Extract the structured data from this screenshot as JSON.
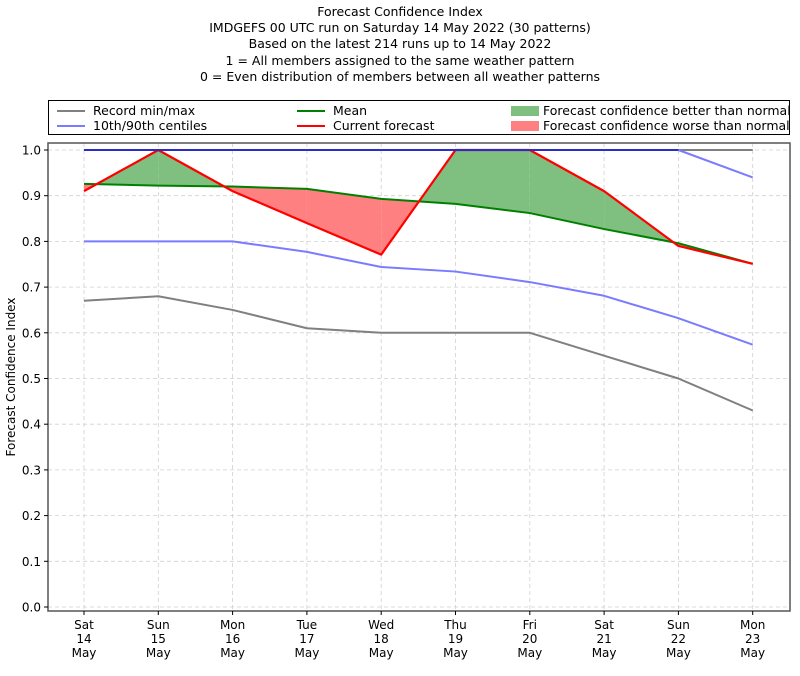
{
  "chart_data": {
    "type": "line",
    "title": "Forecast Confidence Index",
    "subtitle_lines": [
      "IMDGEFS 00 UTC run on Saturday 14 May 2022 (30 patterns)",
      "Based on the latest 214 runs up to 14 May 2022",
      "1 = All members assigned to the same weather pattern",
      "0 = Even distribution of members between all weather patterns"
    ],
    "xlabel": "",
    "ylabel": "Forecast Confidence Index",
    "ylim": [
      0.0,
      1.0
    ],
    "yticks": [
      "0.0",
      "0.1",
      "0.2",
      "0.3",
      "0.4",
      "0.5",
      "0.6",
      "0.7",
      "0.8",
      "0.9",
      "1.0"
    ],
    "grid": true,
    "categories": [
      [
        "Sat",
        "14",
        "May"
      ],
      [
        "Sun",
        "15",
        "May"
      ],
      [
        "Mon",
        "16",
        "May"
      ],
      [
        "Tue",
        "17",
        "May"
      ],
      [
        "Wed",
        "18",
        "May"
      ],
      [
        "Thu",
        "19",
        "May"
      ],
      [
        "Fri",
        "20",
        "May"
      ],
      [
        "Sat",
        "21",
        "May"
      ],
      [
        "Sun",
        "22",
        "May"
      ],
      [
        "Mon",
        "23",
        "May"
      ]
    ],
    "series": [
      {
        "key": "record_max",
        "name": "Record min/max",
        "color": "#808080",
        "values": [
          1.0,
          1.0,
          1.0,
          1.0,
          1.0,
          1.0,
          1.0,
          1.0,
          1.0,
          1.0
        ]
      },
      {
        "key": "record_min",
        "name": "Record min/max",
        "color": "#808080",
        "values": [
          0.67,
          0.68,
          0.65,
          0.61,
          0.6,
          0.6,
          0.6,
          0.55,
          0.5,
          0.43
        ]
      },
      {
        "key": "p90",
        "name": "10th/90th centiles",
        "color": "#7b7bff",
        "values": [
          1.0,
          1.0,
          1.0,
          1.0,
          1.0,
          1.0,
          1.0,
          1.0,
          1.0,
          0.94
        ]
      },
      {
        "key": "p10",
        "name": "10th/90th centiles",
        "color": "#7b7bff",
        "values": [
          0.8,
          0.8,
          0.8,
          0.777,
          0.744,
          0.734,
          0.711,
          0.681,
          0.632,
          0.574
        ]
      },
      {
        "key": "mean",
        "name": "Mean",
        "color": "#008000",
        "values": [
          0.926,
          0.922,
          0.92,
          0.915,
          0.893,
          0.882,
          0.862,
          0.827,
          0.796,
          0.751
        ]
      },
      {
        "key": "current",
        "name": "Current forecast",
        "color": "#ff0000",
        "values": [
          0.91,
          1.0,
          0.91,
          0.84,
          0.771,
          1.0,
          1.0,
          0.91,
          0.79,
          0.751
        ]
      }
    ],
    "fills": [
      {
        "name": "Forecast confidence better than normal",
        "color": "#7fbf7f"
      },
      {
        "name": "Forecast confidence worse than normal",
        "color": "#ff8080"
      }
    ],
    "legend": {
      "placement": "top",
      "entries": [
        {
          "label": "Record min/max",
          "kind": "line",
          "color": "#808080"
        },
        {
          "label": "10th/90th centiles",
          "kind": "line",
          "color": "#7b7bff"
        },
        {
          "label": "Mean",
          "kind": "line",
          "color": "#008000"
        },
        {
          "label": "Current forecast",
          "kind": "line",
          "color": "#ff0000"
        },
        {
          "label": "Forecast confidence better than normal",
          "kind": "patch",
          "color": "#7fbf7f"
        },
        {
          "label": "Forecast confidence worse than normal",
          "kind": "patch",
          "color": "#ff8080"
        }
      ]
    }
  }
}
